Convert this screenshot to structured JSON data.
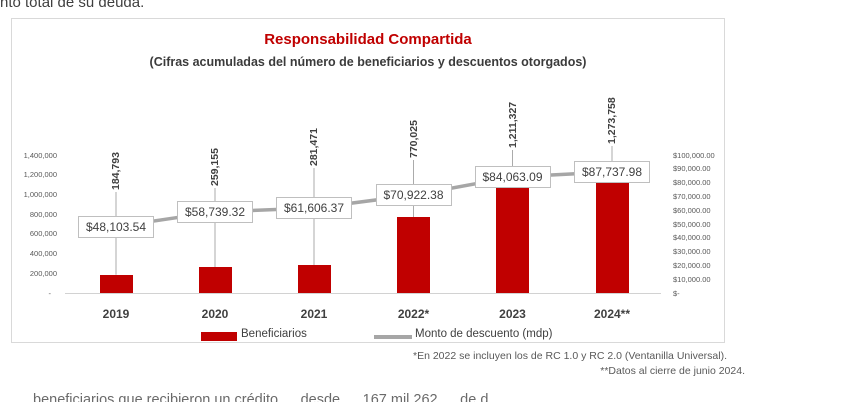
{
  "page": {
    "top_clipped_text": "nto total de su deuda.",
    "bottom_clipped_text": "beneficiarios que recibieron un crédito … desde … 167 mil 262 … de d"
  },
  "chart": {
    "title": "Responsabilidad Compartida",
    "subtitle": "(Cifras acumuladas del número de beneficiarios y descuentos otorgados)",
    "legend": {
      "bar_label": "Beneficiarios",
      "line_label": "Monto de descuento (mdp)"
    },
    "footnote_1": "*En 2022 se incluyen los de RC 1.0 y RC 2.0 (Ventanilla Universal).",
    "footnote_2": "**Datos al cierre de junio 2024.",
    "colors": {
      "bar": "#c00000",
      "title": "#c00000",
      "line": "#a6a6a6",
      "value_box_border": "#bfbfbf"
    }
  },
  "chart_data": {
    "type": "bar",
    "subtype": "combo bar + line, dual axis",
    "categories": [
      "2019",
      "2020",
      "2021",
      "2022*",
      "2023",
      "2024**"
    ],
    "series": [
      {
        "name": "Beneficiarios",
        "type": "bar",
        "axis": "left",
        "values": [
          184793,
          259155,
          281471,
          770025,
          1211327,
          1273758
        ],
        "labels": [
          "184,793",
          "259,155",
          "281,471",
          "770,025",
          "1,211,327",
          "1,273,758"
        ]
      },
      {
        "name": "Monto de descuento (mdp)",
        "type": "line",
        "axis": "right",
        "values": [
          48103.54,
          58739.32,
          61606.37,
          70922.38,
          84063.09,
          87737.98
        ],
        "labels": [
          "$48,103.54",
          "$58,739.32",
          "$61,606.37",
          "$70,922.38",
          "$84,063.09",
          "$87,737.98"
        ]
      }
    ],
    "left_axis": {
      "range": [
        0,
        1400000
      ],
      "ticks": [
        "1,400,000",
        "1,200,000",
        "1,000,000",
        "800,000",
        "600,000",
        "400,000",
        "200,000",
        "-"
      ]
    },
    "right_axis": {
      "range": [
        0,
        100000
      ],
      "ticks": [
        "$100,000.00",
        "$90,000.00",
        "$80,000.00",
        "$70,000.00",
        "$60,000.00",
        "$50,000.00",
        "$40,000.00",
        "$30,000.00",
        "$20,000.00",
        "$10,000.00",
        "$-"
      ]
    },
    "grid": false,
    "legend_position": "bottom",
    "title": "Responsabilidad Compartida",
    "subtitle": "(Cifras acumuladas del número de beneficiarios y descuentos otorgados)"
  }
}
